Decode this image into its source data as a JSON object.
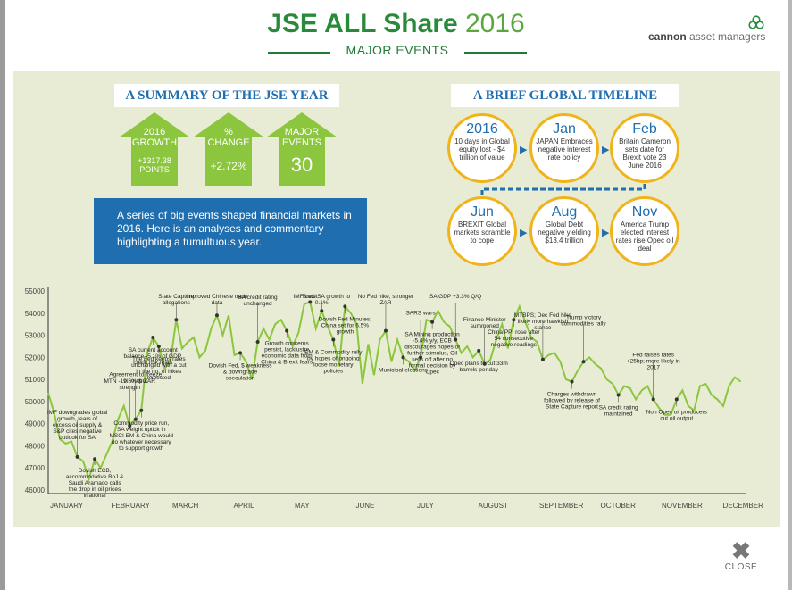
{
  "header": {
    "title_bold": "JSE ALL Share",
    "title_year": "2016",
    "subtitle": "MAJOR EVENTS",
    "brand_name": "cannon",
    "brand_rest": "asset managers",
    "brand_icon": "trefoil-logo-icon"
  },
  "summary": {
    "title": "A SUMMARY OF THE JSE YEAR",
    "arrows": [
      {
        "label": "2016\nGROWTH",
        "value": "+1317.38\nPOINTS"
      },
      {
        "label": "%\nCHANGE",
        "value": "+2.72%"
      },
      {
        "label": "MAJOR\nEVENTS",
        "value": "30"
      }
    ],
    "description": "A series of big events shaped financial markets in 2016. Here is an analyses and commentary highlighting a tumultuous year."
  },
  "timeline": {
    "title": "A BRIEF GLOBAL TIMELINE",
    "items": [
      {
        "head": "2016",
        "text": "10 days in Global equity lost - $4 trillion of value"
      },
      {
        "head": "Jan",
        "text": "JAPAN Embraces negative interest rate policy"
      },
      {
        "head": "Feb",
        "text": "Britain Cameron sets date for Brexit vote 23 June 2016"
      },
      {
        "head": "Jun",
        "text": "BREXIT Global markets scramble to cope"
      },
      {
        "head": "Aug",
        "text": "Global Debt negative yielding $13.4 trillion"
      },
      {
        "head": "Nov",
        "text": "America Trump elected interest rates rise Opec oil deal"
      }
    ]
  },
  "chart_data": {
    "type": "line",
    "title": "",
    "xlabel": "",
    "ylabel": "",
    "ylim": [
      46000,
      55000
    ],
    "yticks": [
      46000,
      47000,
      48000,
      49000,
      50000,
      51000,
      52000,
      53000,
      54000,
      55000
    ],
    "month_labels": [
      "JANUARY",
      "FEBRUARY",
      "MARCH",
      "APRIL",
      "MAY",
      "JUNE",
      "JULY",
      "AUGUST",
      "SEPTEMBER",
      "OCTOBER",
      "NOVEMBER",
      "DECEMBER"
    ],
    "series": [
      {
        "color": "#8cc63f",
        "x": [
          0,
          0.1,
          0.2,
          0.3,
          0.4,
          0.5,
          0.6,
          0.7,
          0.8,
          0.9,
          1.0,
          1.1,
          1.2,
          1.3,
          1.4,
          1.5,
          1.6,
          1.7,
          1.8,
          1.9,
          2.0,
          2.1,
          2.2,
          2.3,
          2.4,
          2.5,
          2.6,
          2.7,
          2.8,
          2.9,
          3.0,
          3.1,
          3.2,
          3.3,
          3.4,
          3.5,
          3.6,
          3.7,
          3.8,
          3.9,
          4.0,
          4.1,
          4.2,
          4.3,
          4.4,
          4.5,
          4.6,
          4.7,
          4.8,
          4.9,
          5.0,
          5.1,
          5.2,
          5.3,
          5.4,
          5.5,
          5.6,
          5.7,
          5.8,
          5.9,
          6.0,
          6.1,
          6.2,
          6.3,
          6.4,
          6.5,
          6.6,
          6.7,
          6.8,
          6.9,
          7.0,
          7.1,
          7.2,
          7.3,
          7.4,
          7.5,
          7.6,
          7.7,
          7.8,
          7.9,
          8.0,
          8.1,
          8.2,
          8.3,
          8.4,
          8.5,
          8.6,
          8.7,
          8.8,
          8.9,
          9.0,
          9.1,
          9.2,
          9.3,
          9.4,
          9.5,
          9.6,
          9.7,
          9.8,
          9.9,
          10.0,
          10.1,
          10.2,
          10.3,
          10.4,
          10.5,
          10.6,
          10.7,
          10.8,
          10.9,
          11.0,
          11.1,
          11.2,
          11.3,
          11.4,
          11.5,
          11.6,
          11.7,
          11.8,
          11.9
        ],
        "values": [
          50400,
          49500,
          48300,
          48100,
          48200,
          47500,
          47300,
          46500,
          47400,
          47000,
          47600,
          48200,
          49200,
          49800,
          48900,
          49200,
          49600,
          52200,
          52900,
          52500,
          51500,
          51800,
          53700,
          52400,
          52700,
          52900,
          52000,
          52300,
          53300,
          53900,
          53000,
          53900,
          52100,
          52200,
          51800,
          51000,
          52700,
          53300,
          52800,
          53500,
          53700,
          53200,
          52500,
          53100,
          54400,
          54500,
          53300,
          54100,
          53400,
          52800,
          51600,
          54300,
          54000,
          53500,
          50800,
          52600,
          51200,
          52800,
          53200,
          51800,
          52800,
          52000,
          51800,
          51400,
          52000,
          53700,
          53600,
          54100,
          53600,
          53400,
          52800,
          52200,
          52500,
          52000,
          52300,
          51700,
          51900,
          52800,
          53500,
          52400,
          53700,
          54300,
          53600,
          52900,
          52700,
          51900,
          52100,
          52200,
          51800,
          51000,
          50900,
          51400,
          51800,
          52000,
          51700,
          51500,
          51000,
          50800,
          50300,
          50700,
          50600,
          50100,
          50500,
          50700,
          50100,
          49700,
          49400,
          49400,
          50100,
          50500,
          49800,
          49600,
          50700,
          50800,
          50300,
          50100,
          49800,
          50700,
          51100,
          50900
        ]
      }
    ],
    "annotations": [
      "IMF downgrades global growth, fears of excess oil supply & S&P cites negative outlook for SA",
      "Dovish ECB, accommodative BoJ & Saudi Aramaco calls the drop in oil prices \"irrational\"",
      "MTN -19.6% & ZAR strength",
      "SA current account balance -5.1% of GDP, credit risk fears",
      "Agreement to freeze oil output",
      "The Fed keeps rates unchanged with a cut in the no. of hikes expected",
      "State Capture allegations",
      "Commodity price run, SA weight uptick in MSCI EM & China would do whatever necessary to support growth",
      "Improved Chinese trade data",
      "Dovish Fed, $ weakness & downgrade speculation",
      "SA credit rating unchanged",
      "Growth concerns persist, lacklustre economic data from China & Brexit fears",
      "Brexit",
      "EM & Commodity rally by hopes of ongoing loose monetary policies",
      "IMF cuts SA growth to 0.1%",
      "Dovish Fed Minutes; China set for 6.5% growth",
      "No Fed hike, stronger ZAR",
      "Municipal elections",
      "SARS wars",
      "SA Mining production -5.4% y/y, ECB discourages hopes of further stimulus, Oil sells off after no formal decision by Opec",
      "SA GDP +3.3% Q/Q",
      "Opec plans to cut 33m barrels per day",
      "Finance Minister summoned",
      "China PPI rose after 54 consecutive negative readings",
      "MTBPS; Dec Fed hike likely more hawkish stance",
      "Charges withdrawn followed by release of State Capture report",
      "Trump victory commodities rally",
      "SA credit rating maintained",
      "Fed raises rates +25bp; more likely in 2017",
      "Non Opec oil producers cut oil output"
    ]
  },
  "close": {
    "icon": "close-x-icon",
    "label": "CLOSE"
  }
}
